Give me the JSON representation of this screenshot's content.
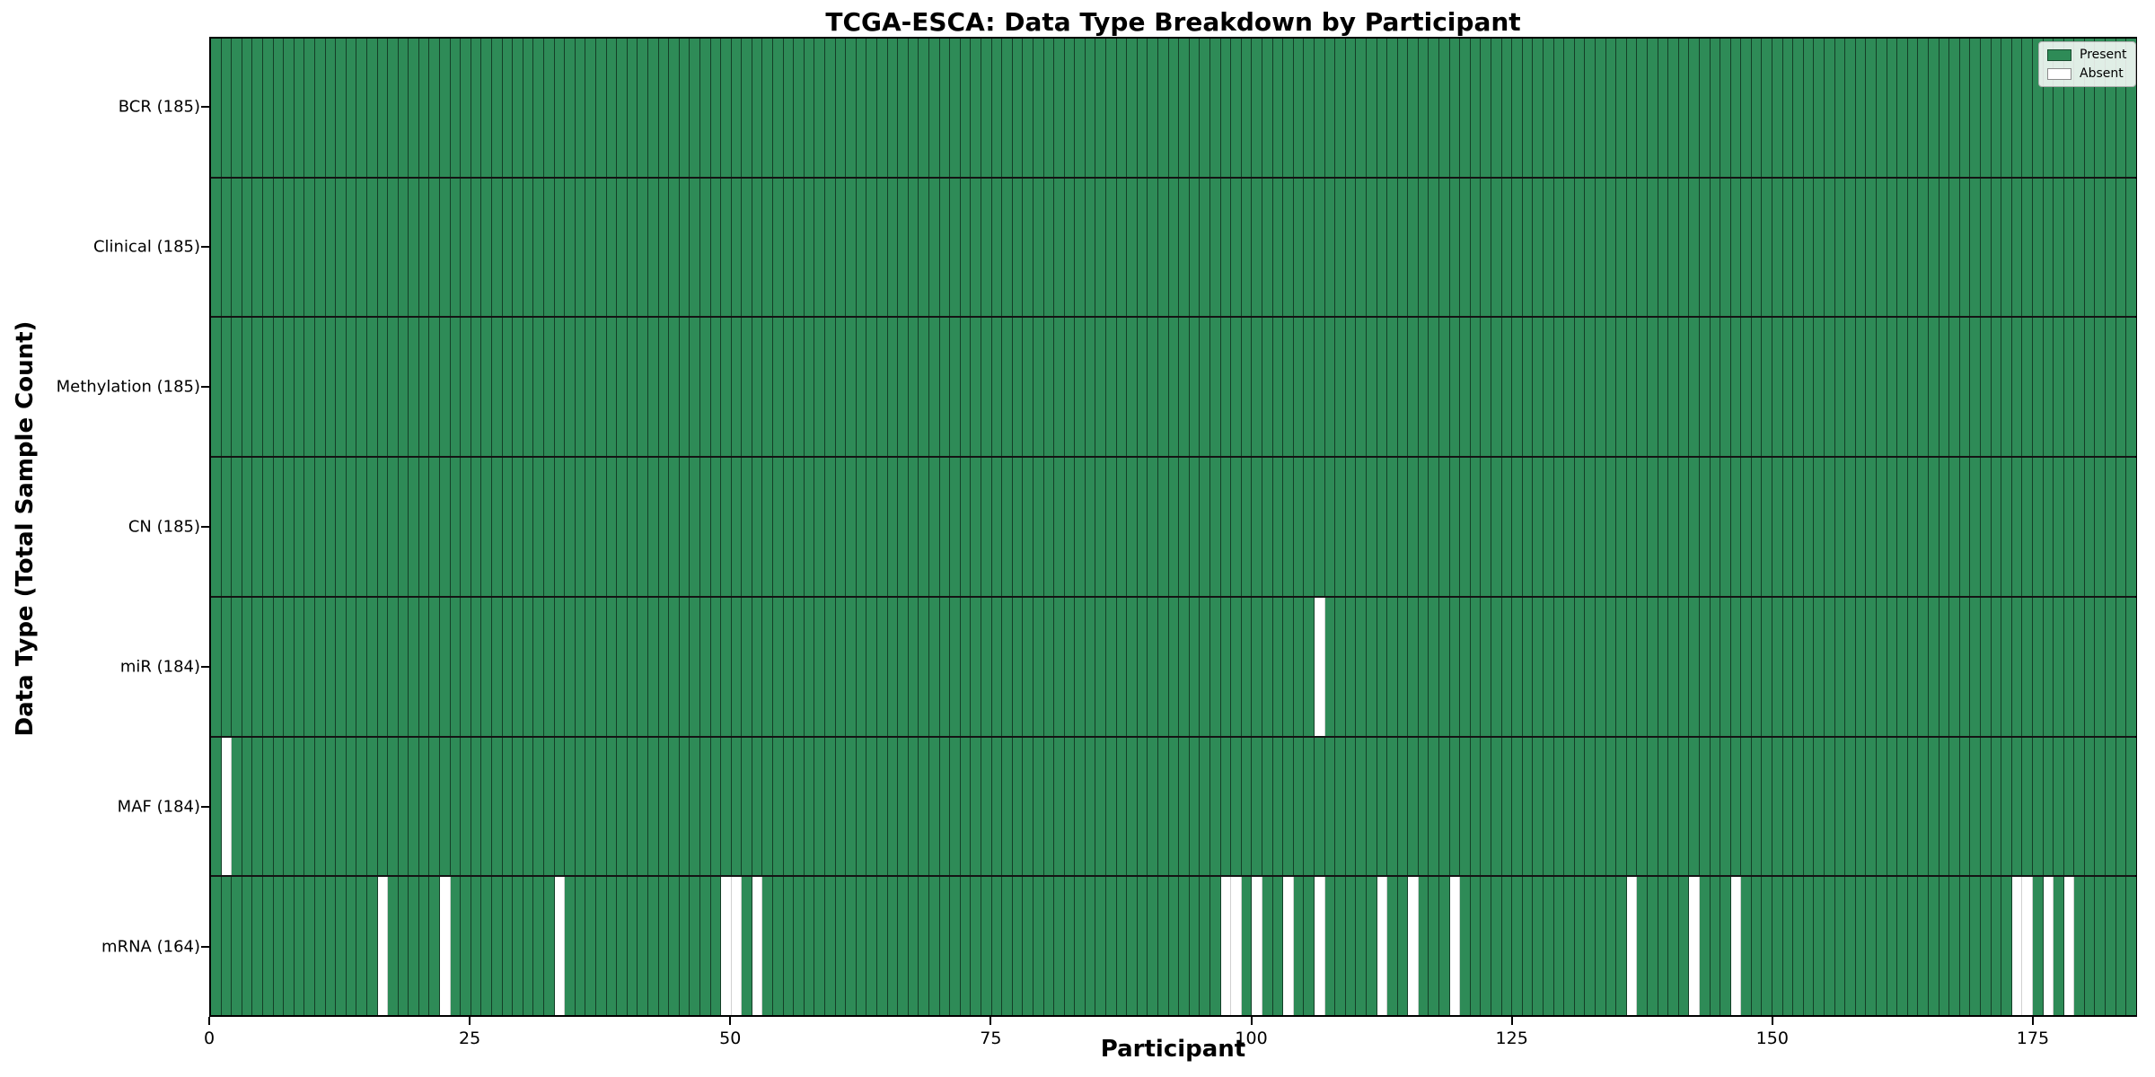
{
  "title": "TCGA-ESCA: Data Type Breakdown by Participant",
  "legend": {
    "present_label": "Present",
    "absent_label": "Absent"
  },
  "colors": {
    "present": "#2e8b57",
    "absent": "#ffffff",
    "grid": "#000000"
  },
  "chart_data": {
    "type": "heatmap",
    "title": "TCGA-ESCA: Data Type Breakdown by Participant",
    "xlabel": "Participant",
    "ylabel": "Data Type (Total Sample Count)",
    "n_participants": 185,
    "x_ticks": [
      0,
      25,
      50,
      75,
      100,
      125,
      150,
      175
    ],
    "xlim": [
      0,
      185
    ],
    "grid": true,
    "legend_position": "upper right",
    "legend_entries": [
      {
        "label": "Present",
        "color": "#2e8b57"
      },
      {
        "label": "Absent",
        "color": "#ffffff"
      }
    ],
    "rows": [
      {
        "label": "BCR (185)",
        "data_type": "BCR",
        "present_count": 185,
        "absent_participant_indices": []
      },
      {
        "label": "Clinical (185)",
        "data_type": "Clinical",
        "present_count": 185,
        "absent_participant_indices": []
      },
      {
        "label": "Methylation (185)",
        "data_type": "Methylation",
        "present_count": 185,
        "absent_participant_indices": []
      },
      {
        "label": "CN (185)",
        "data_type": "CN",
        "present_count": 185,
        "absent_participant_indices": []
      },
      {
        "label": "miR (184)",
        "data_type": "miR",
        "present_count": 184,
        "absent_participant_indices": [
          106
        ]
      },
      {
        "label": "MAF (184)",
        "data_type": "MAF",
        "present_count": 184,
        "absent_participant_indices": [
          1
        ]
      },
      {
        "label": "mRNA (164)",
        "data_type": "mRNA",
        "present_count": 164,
        "absent_participant_indices": [
          16,
          22,
          33,
          49,
          50,
          52,
          97,
          98,
          100,
          103,
          106,
          112,
          115,
          119,
          136,
          142,
          146,
          173,
          174,
          176,
          178
        ]
      }
    ]
  }
}
